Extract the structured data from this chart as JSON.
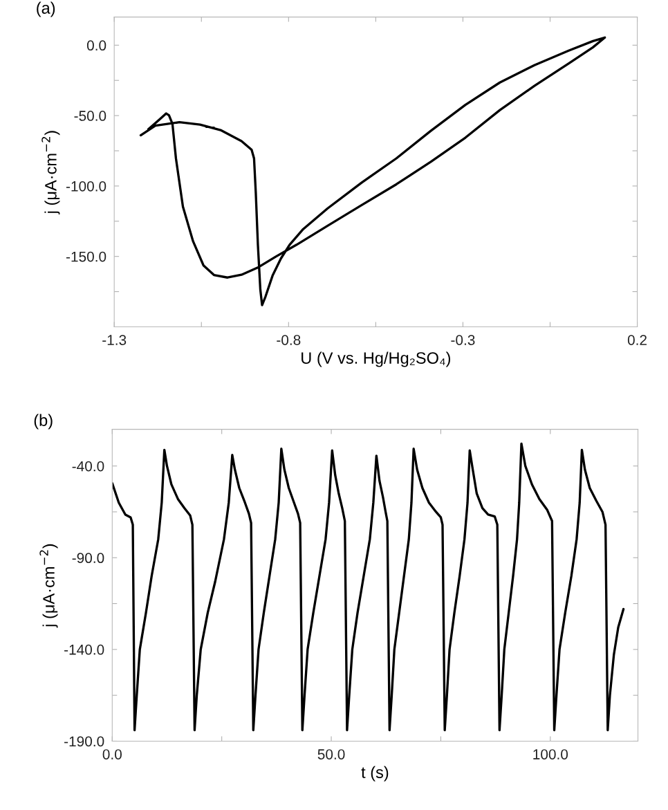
{
  "chart_data": [
    {
      "type": "line",
      "annotations": [
        "(a)"
      ],
      "xlabel": "U (V vs. Hg/Hg₂SO₄)",
      "ylabel": "j (μA·cm$^{−2}$)",
      "xlim": [
        -1.3,
        0.2
      ],
      "ylim": [
        -200,
        20
      ],
      "xticks": [
        -1.3,
        {
          "value": -1.05,
          "label": null
        },
        -0.8,
        {
          "value": -0.55,
          "label": null
        },
        -0.3,
        {
          "value": -0.05,
          "label": null
        },
        0.2
      ],
      "yticks": [
        {
          "value": -175,
          "label": null
        },
        {
          "value": -150,
          "label": "-150.0"
        },
        {
          "value": -125,
          "label": null
        },
        {
          "value": -100,
          "label": "-100.0"
        },
        {
          "value": -75,
          "label": null
        },
        {
          "value": -50,
          "label": "-50.0"
        },
        {
          "value": -25,
          "label": null
        },
        {
          "value": 0,
          "label": "0.0"
        }
      ],
      "series": [
        {
          "color": "#000000",
          "x": [
            -1.224,
            -1.182,
            -1.113,
            -1.054,
            -0.995,
            -0.935,
            -0.906,
            -0.899,
            -0.894,
            -0.888,
            -0.881,
            -0.876,
            -0.866,
            -0.846,
            -0.822,
            -0.797,
            -0.758,
            -0.688,
            -0.59,
            -0.491,
            -0.392,
            -0.293,
            -0.194,
            -0.095,
            0.003,
            0.073,
            0.107,
            0.073,
            0.003,
            -0.095,
            -0.194,
            -0.293,
            -0.392,
            -0.491,
            -0.59,
            -0.688,
            -0.777,
            -0.837,
            -0.886,
            -0.935,
            -0.975,
            -1.014,
            -1.044,
            -1.074,
            -1.103,
            -1.123,
            -1.133,
            -1.143,
            -1.151,
            -1.173,
            -1.202
          ],
          "values": [
            -64.0,
            -57.1,
            -54.7,
            -56.4,
            -60.3,
            -68.1,
            -74.3,
            -80.4,
            -104.9,
            -141.7,
            -173.5,
            -184.6,
            -178.4,
            -163.7,
            -151.5,
            -141.7,
            -130.6,
            -115.9,
            -97.5,
            -80.4,
            -60.8,
            -42.4,
            -26.5,
            -14.2,
            -3.9,
            2.9,
            5.4,
            -1.5,
            -13.0,
            -28.9,
            -46.1,
            -65.7,
            -82.8,
            -98.8,
            -113.5,
            -128.2,
            -141.7,
            -150.2,
            -157.6,
            -163.0,
            -165.0,
            -163.2,
            -156.4,
            -139.2,
            -114.7,
            -80.4,
            -55.9,
            -49.8,
            -48.5,
            -53.4,
            -59.6
          ]
        }
      ]
    },
    {
      "type": "line",
      "annotations": [
        "(b)"
      ],
      "xlabel": "t (s)",
      "ylabel": "j (μA·cm$^{−2}$)",
      "xlim": [
        0,
        120
      ],
      "ylim": [
        -190,
        -20
      ],
      "xticks": [
        {
          "value": 0,
          "label": "0.0"
        },
        {
          "value": 25,
          "label": null
        },
        {
          "value": 50,
          "label": "50.0"
        },
        {
          "value": 75,
          "label": null
        },
        {
          "value": 100,
          "label": "100.0"
        }
      ],
      "yticks": [
        {
          "value": -190,
          "label": "-190.0"
        },
        {
          "value": -165,
          "label": null
        },
        {
          "value": -140,
          "label": "-140.0"
        },
        {
          "value": -115,
          "label": null
        },
        {
          "value": -90,
          "label": "-90.0"
        },
        {
          "value": -65,
          "label": null
        },
        {
          "value": -40,
          "label": "-40.0"
        }
      ],
      "series": [
        {
          "color": "#000000",
          "x": [
            0,
            1.5,
            3,
            4.2,
            4.7,
            5.1,
            5.6,
            6.3,
            7.7,
            9.0,
            10.5,
            11.3,
            11.9,
            12.5,
            13.5,
            15,
            16.5,
            17.8,
            18.3,
            18.8,
            19.3,
            20.2,
            21.8,
            23.5,
            25.5,
            26.6,
            27.4,
            28.0,
            29,
            30.3,
            31.2,
            31.7,
            32.2,
            32.7,
            33.4,
            34.6,
            35.9,
            37.2,
            38.0,
            38.6,
            39.3,
            40.3,
            41.5,
            42.4,
            42.9,
            43.4,
            43.9,
            44.6,
            45.9,
            47.3,
            48.7,
            49.5,
            50.2,
            50.9,
            51.7,
            52.5,
            53.1,
            53.6,
            54.1,
            54.8,
            56.0,
            57.4,
            58.8,
            59.6,
            60.3,
            61.0,
            61.8,
            62.4,
            62.8,
            63.3,
            63.8,
            64.4,
            65.5,
            66.6,
            67.7,
            68.3,
            68.8,
            69.6,
            70.8,
            72.3,
            73.9,
            75.0,
            75.4,
            75.9,
            76.4,
            77.0,
            78.1,
            79.3,
            80.4,
            81.1,
            81.6,
            82.3,
            83.2,
            84.5,
            85.8,
            87.3,
            87.9,
            88.4,
            88.9,
            89.5,
            90.5,
            91.5,
            92.4,
            92.9,
            93.4,
            94.3,
            95.8,
            97.5,
            99.3,
            100.4,
            100.9,
            101.4,
            102.1,
            103.4,
            104.8,
            106.0,
            106.7,
            107.2,
            107.9,
            109.0,
            110.5,
            111.9,
            112.6,
            113.1,
            113.6,
            114.5,
            115.5,
            116.7
          ],
          "values": [
            -49.4,
            -60,
            -66.5,
            -68,
            -72,
            -184,
            -165,
            -140,
            -120,
            -100,
            -80,
            -60,
            -31.2,
            -40,
            -50,
            -58,
            -63,
            -67,
            -72,
            -184,
            -165,
            -140,
            -120,
            -103,
            -80,
            -60,
            -34.0,
            -42,
            -52,
            -60,
            -66,
            -71,
            -184,
            -165,
            -140,
            -120,
            -100,
            -80,
            -60,
            -30.6,
            -42,
            -52,
            -60,
            -66,
            -71,
            -184,
            -165,
            -140,
            -120,
            -100,
            -80,
            -60,
            -31.5,
            -45,
            -55,
            -63,
            -70,
            -184,
            -165,
            -140,
            -120,
            -100,
            -80,
            -60,
            -34.4,
            -48,
            -57,
            -65,
            -70,
            -184,
            -165,
            -140,
            -120,
            -100,
            -80,
            -60,
            -30.6,
            -42,
            -52,
            -60,
            -65,
            -68,
            -72,
            -184,
            -165,
            -140,
            -120,
            -100,
            -80,
            -60,
            -31.5,
            -42,
            -55,
            -63,
            -66.5,
            -67.5,
            -72,
            -184,
            -165,
            -140,
            -120,
            -100,
            -80,
            -60,
            -27.8,
            -40,
            -50,
            -58,
            -64,
            -70,
            -184,
            -165,
            -140,
            -120,
            -100,
            -80,
            -60,
            -31.2,
            -42,
            -52,
            -59,
            -65,
            -72,
            -184,
            -165,
            -143,
            -128,
            -118
          ]
        }
      ]
    }
  ]
}
